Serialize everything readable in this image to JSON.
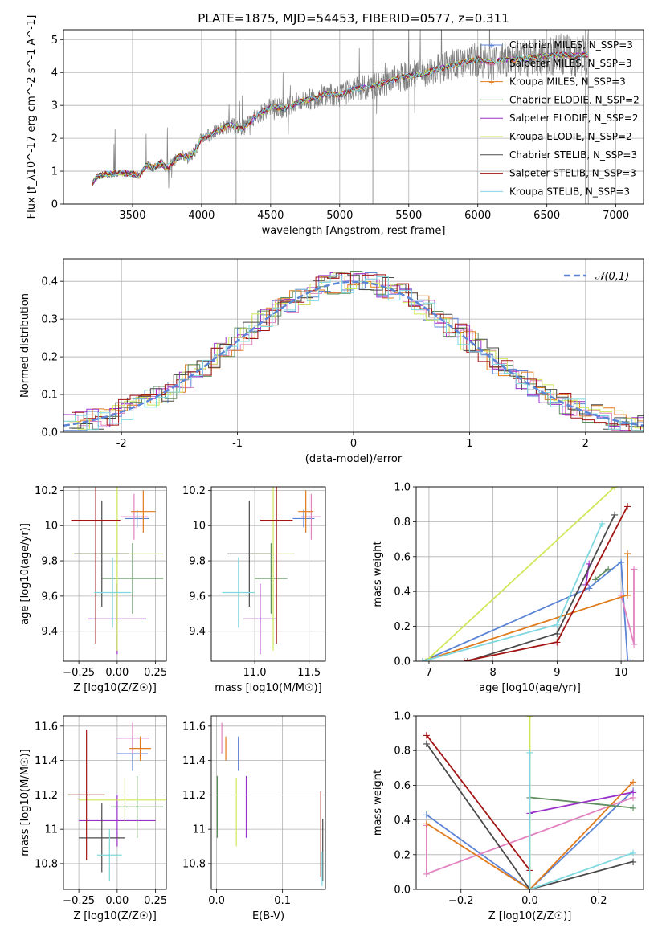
{
  "colors": {
    "Chabrier MILES": "#5b84d6",
    "Salpeter MILES": "#e283c0",
    "Kroupa MILES": "#e07b1e",
    "Chabrier ELODIE": "#5f8f5f",
    "Salpeter ELODIE": "#9b30c8",
    "Kroupa ELODIE": "#cfe85a",
    "Chabrier STELIB": "#4a4a4a",
    "Salpeter STELIB": "#a31515",
    "Kroupa STELIB": "#7fd8e0",
    "data": "#808080",
    "normal": "#5b84d6"
  },
  "chart_data": [
    {
      "id": "spectrum",
      "type": "line",
      "title": "PLATE=1875, MJD=54453, FIBERID=0577, z=0.311",
      "xlabel": "wavelength [Angstrom, rest frame]",
      "ylabel": "Flux [f_λ10^-17 erg cm^-2 s^-1 A^-1]",
      "xlim": [
        3000,
        7200
      ],
      "ylim": [
        0,
        5.3
      ],
      "xticks": [
        3500,
        4000,
        4500,
        5000,
        5500,
        6000,
        6500,
        7000
      ],
      "yticks": [
        0,
        1,
        2,
        3,
        4,
        5
      ],
      "legend_position": "top-right",
      "legend": [
        "Chabrier MILES, N_SSP=3",
        "Salpeter MILES, N_SSP=3",
        "Kroupa MILES, N_SSP=3",
        "Chabrier ELODIE, N_SSP=2",
        "Salpeter ELODIE, N_SSP=2",
        "Kroupa ELODIE, N_SSP=2",
        "Chabrier STELIB, N_SSP=3",
        "Salpeter STELIB, N_SSP=3",
        "Kroupa STELIB, N_SSP=3"
      ],
      "model_continuum": {
        "x": [
          3200,
          3250,
          3300,
          3400,
          3500,
          3550,
          3600,
          3650,
          3700,
          3750,
          3800,
          3850,
          3900,
          3950,
          4000,
          4100,
          4200,
          4300,
          4400,
          4500,
          4600,
          4700,
          4800,
          4900,
          5000,
          5100,
          5200,
          5300,
          5400,
          5500,
          5600,
          5700,
          5800,
          5900,
          6000,
          6100,
          6200,
          6300,
          6400,
          6500,
          6600,
          6700,
          6800,
          6900,
          7000,
          7100,
          7200
        ],
        "y": [
          0.6,
          0.85,
          0.9,
          0.95,
          0.92,
          0.85,
          1.2,
          1.1,
          1.25,
          1.1,
          1.3,
          1.5,
          1.4,
          1.6,
          2.0,
          2.2,
          2.4,
          2.3,
          2.7,
          2.95,
          2.9,
          3.1,
          3.2,
          3.35,
          3.3,
          3.5,
          3.55,
          3.65,
          3.8,
          3.9,
          3.95,
          4.1,
          4.2,
          4.3,
          4.4,
          4.3,
          4.4,
          4.4,
          4.45,
          4.5,
          4.55,
          4.5,
          4.55,
          4.6,
          4.55,
          4.55,
          4.6
        ]
      },
      "data_extent": [
        3210,
        6800
      ]
    },
    {
      "id": "residuals",
      "type": "histogram",
      "xlabel": "(data-model)/error",
      "ylabel": "Normed distribution",
      "xlim": [
        -2.5,
        2.5
      ],
      "ylim": [
        0,
        0.46
      ],
      "xticks": [
        -2,
        -1,
        0,
        1,
        2
      ],
      "yticks": [
        0.0,
        0.1,
        0.2,
        0.3,
        0.4
      ],
      "legend": [
        "𝒩(0,1)"
      ],
      "legend_position": "top-right",
      "normal": {
        "mu": 0,
        "sigma": 1
      }
    },
    {
      "id": "age_vs_Z",
      "type": "errorbar",
      "xlabel": "Z [log10(Z/Z☉)]",
      "ylabel": "age  [log10(age/yr)]",
      "xlim": [
        -0.35,
        0.32
      ],
      "ylim": [
        9.23,
        10.22
      ],
      "xticks": [
        -0.25,
        0.0,
        0.25
      ],
      "xtick_labels": [
        "−0.25",
        "0.00",
        "0.25"
      ],
      "yticks": [
        9.4,
        9.6,
        9.8,
        10.0,
        10.2
      ],
      "points": [
        {
          "model": "Chabrier MILES",
          "x": 0.13,
          "xerr": 0.08,
          "y": 10.04,
          "yerr": 0.05
        },
        {
          "model": "Salpeter MILES",
          "x": 0.11,
          "xerr": 0.09,
          "y": 10.05,
          "yerr": 0.13
        },
        {
          "model": "Kroupa MILES",
          "x": 0.17,
          "xerr": 0.08,
          "y": 10.08,
          "yerr": 0.12
        },
        {
          "model": "Chabrier ELODIE",
          "x": 0.1,
          "xerr": 0.2,
          "y": 9.7,
          "yerr": 0.2
        },
        {
          "model": "Salpeter ELODIE",
          "x": 0.0,
          "xerr": 0.19,
          "y": 9.47,
          "yerr": 0.2
        },
        {
          "model": "Kroupa ELODIE",
          "x": 0.0,
          "xerr": 0.3,
          "y": 9.84,
          "yerr": 0.55
        },
        {
          "model": "Chabrier STELIB",
          "x": -0.1,
          "xerr": 0.18,
          "y": 9.84,
          "yerr": 0.3
        },
        {
          "model": "Salpeter STELIB",
          "x": -0.14,
          "xerr": 0.16,
          "y": 10.03,
          "yerr": 0.7
        },
        {
          "model": "Kroupa STELIB",
          "x": -0.03,
          "xerr": 0.12,
          "y": 9.62,
          "yerr": 0.2
        }
      ]
    },
    {
      "id": "age_vs_mass",
      "type": "errorbar",
      "xlabel": "mass [log10(M/M☉)]",
      "ylabel": "",
      "xlim": [
        10.6,
        11.65
      ],
      "ylim": [
        9.23,
        10.22
      ],
      "xticks": [
        11.0,
        11.5
      ],
      "xtick_labels": [
        "11.0",
        "11.5"
      ],
      "yticks": [
        9.4,
        9.6,
        9.8,
        10.0,
        10.2
      ],
      "points": [
        {
          "model": "Chabrier MILES",
          "x": 11.45,
          "xerr": 0.1,
          "y": 10.04,
          "yerr": 0.05
        },
        {
          "model": "Salpeter MILES",
          "x": 11.52,
          "xerr": 0.09,
          "y": 10.05,
          "yerr": 0.13
        },
        {
          "model": "Kroupa MILES",
          "x": 11.47,
          "xerr": 0.07,
          "y": 10.08,
          "yerr": 0.12
        },
        {
          "model": "Chabrier ELODIE",
          "x": 11.15,
          "xerr": 0.15,
          "y": 9.7,
          "yerr": 0.2
        },
        {
          "model": "Salpeter ELODIE",
          "x": 11.05,
          "xerr": 0.15,
          "y": 9.47,
          "yerr": 0.2
        },
        {
          "model": "Kroupa ELODIE",
          "x": 11.17,
          "xerr": 0.2,
          "y": 9.84,
          "yerr": 0.55
        },
        {
          "model": "Chabrier STELIB",
          "x": 10.95,
          "xerr": 0.2,
          "y": 9.84,
          "yerr": 0.3
        },
        {
          "model": "Salpeter STELIB",
          "x": 11.2,
          "xerr": 0.15,
          "y": 10.03,
          "yerr": 0.7
        },
        {
          "model": "Kroupa STELIB",
          "x": 10.85,
          "xerr": 0.15,
          "y": 9.62,
          "yerr": 0.2
        }
      ]
    },
    {
      "id": "weight_vs_age",
      "type": "line",
      "xlabel": "age  [log10(age/yr)]",
      "ylabel": "mass weight",
      "xlim": [
        6.8,
        10.35
      ],
      "ylim": [
        0,
        1.0
      ],
      "xticks": [
        7,
        8,
        9,
        10
      ],
      "yticks": [
        0.0,
        0.2,
        0.4,
        0.6,
        0.8,
        1.0
      ],
      "series": [
        {
          "model": "Chabrier MILES",
          "x": [
            6.9,
            9.5,
            10.0,
            10.1
          ],
          "y": [
            0.0,
            0.42,
            0.57,
            0.01
          ]
        },
        {
          "model": "Salpeter MILES",
          "x": [
            10.0,
            10.2,
            10.2
          ],
          "y": [
            0.38,
            0.1,
            0.53
          ]
        },
        {
          "model": "Kroupa MILES",
          "x": [
            6.9,
            10.1,
            10.1
          ],
          "y": [
            0.0,
            0.38,
            0.62
          ]
        },
        {
          "model": "Chabrier ELODIE",
          "x": [
            9.6,
            9.8
          ],
          "y": [
            0.47,
            0.53
          ]
        },
        {
          "model": "Salpeter ELODIE",
          "x": [
            9.45,
            9.5
          ],
          "y": [
            0.44,
            0.56
          ]
        },
        {
          "model": "Kroupa ELODIE",
          "x": [
            6.95,
            9.9
          ],
          "y": [
            0.0,
            1.0
          ]
        },
        {
          "model": "Chabrier STELIB",
          "x": [
            7.6,
            9.0,
            9.9
          ],
          "y": [
            0.0,
            0.16,
            0.84
          ]
        },
        {
          "model": "Salpeter STELIB",
          "x": [
            7.55,
            9.0,
            10.1
          ],
          "y": [
            0.0,
            0.11,
            0.89
          ]
        },
        {
          "model": "Kroupa STELIB",
          "x": [
            6.9,
            9.0,
            9.7
          ],
          "y": [
            0.0,
            0.21,
            0.79
          ]
        }
      ]
    },
    {
      "id": "mass_vs_Z",
      "type": "errorbar",
      "xlabel": "Z [log10(Z/Z☉)]",
      "ylabel": "mass [log10(M/M☉)]",
      "xlim": [
        -0.35,
        0.32
      ],
      "ylim": [
        10.65,
        11.66
      ],
      "xticks": [
        -0.25,
        0.0,
        0.25
      ],
      "xtick_labels": [
        "−0.25",
        "0.00",
        "0.25"
      ],
      "yticks": [
        10.8,
        11.0,
        11.2,
        11.4,
        11.6
      ],
      "points": [
        {
          "model": "Chabrier MILES",
          "x": 0.1,
          "xerr": 0.1,
          "y": 11.44,
          "yerr": 0.1
        },
        {
          "model": "Salpeter MILES",
          "x": 0.1,
          "xerr": 0.11,
          "y": 11.53,
          "yerr": 0.09
        },
        {
          "model": "Kroupa MILES",
          "x": 0.15,
          "xerr": 0.07,
          "y": 11.47,
          "yerr": 0.07
        },
        {
          "model": "Chabrier ELODIE",
          "x": 0.13,
          "xerr": 0.17,
          "y": 11.13,
          "yerr": 0.18
        },
        {
          "model": "Salpeter ELODIE",
          "x": 0.0,
          "xerr": 0.25,
          "y": 11.05,
          "yerr": 0.15
        },
        {
          "model": "Kroupa ELODIE",
          "x": 0.05,
          "xerr": 0.3,
          "y": 11.17,
          "yerr": 0.13
        },
        {
          "model": "Chabrier STELIB",
          "x": -0.1,
          "xerr": 0.15,
          "y": 10.95,
          "yerr": 0.2
        },
        {
          "model": "Salpeter STELIB",
          "x": -0.2,
          "xerr": 0.12,
          "y": 11.2,
          "yerr": 0.38
        },
        {
          "model": "Kroupa STELIB",
          "x": -0.05,
          "xerr": 0.08,
          "y": 10.85,
          "yerr": 0.15
        }
      ]
    },
    {
      "id": "mass_vs_ebv",
      "type": "errorbar",
      "xlabel": "E(B-V)",
      "ylabel": "",
      "xlim": [
        -0.008,
        0.165
      ],
      "ylim": [
        10.65,
        11.66
      ],
      "xticks": [
        0.0,
        0.1
      ],
      "xtick_labels": [
        "0.0",
        "0.1"
      ],
      "yticks": [
        10.8,
        11.0,
        11.2,
        11.4,
        11.6
      ],
      "points": [
        {
          "model": "Chabrier MILES",
          "x": 0.033,
          "y": 11.44,
          "yerr": 0.1
        },
        {
          "model": "Salpeter MILES",
          "x": 0.008,
          "y": 11.53,
          "yerr": 0.09
        },
        {
          "model": "Kroupa MILES",
          "x": 0.014,
          "y": 11.47,
          "yerr": 0.07
        },
        {
          "model": "Chabrier ELODIE",
          "x": 0.001,
          "y": 11.13,
          "yerr": 0.18
        },
        {
          "model": "Salpeter ELODIE",
          "x": 0.045,
          "y": 11.13,
          "yerr": 0.18
        },
        {
          "model": "Kroupa ELODIE",
          "x": 0.03,
          "y": 11.1,
          "yerr": 0.2
        },
        {
          "model": "Chabrier STELIB",
          "x": 0.161,
          "y": 10.88,
          "yerr": 0.18
        },
        {
          "model": "Salpeter STELIB",
          "x": 0.158,
          "y": 10.97,
          "yerr": 0.25
        },
        {
          "model": "Kroupa STELIB",
          "x": 0.16,
          "y": 10.77,
          "yerr": 0.1
        }
      ]
    },
    {
      "id": "weight_vs_Z",
      "type": "line",
      "xlabel": "Z [log10(Z/Z☉)]",
      "ylabel": "mass weight",
      "xlim": [
        -0.33,
        0.33
      ],
      "ylim": [
        0,
        1.0
      ],
      "xticks": [
        -0.2,
        0.0,
        0.2
      ],
      "xtick_labels": [
        "−0.2",
        "0.0",
        "0.2"
      ],
      "yticks": [
        0.0,
        0.2,
        0.4,
        0.6,
        0.8,
        1.0
      ],
      "series": [
        {
          "model": "Chabrier MILES",
          "x": [
            -0.3,
            0.0,
            0.3
          ],
          "y": [
            0.43,
            0.0,
            0.57
          ]
        },
        {
          "model": "Salpeter MILES",
          "x": [
            -0.3,
            -0.3,
            0.3
          ],
          "y": [
            0.37,
            0.09,
            0.53
          ]
        },
        {
          "model": "Kroupa MILES",
          "x": [
            -0.3,
            0.0,
            0.3
          ],
          "y": [
            0.38,
            0.0,
            0.62
          ]
        },
        {
          "model": "Chabrier ELODIE",
          "x": [
            0.0,
            0.3
          ],
          "y": [
            0.53,
            0.47
          ]
        },
        {
          "model": "Salpeter ELODIE",
          "x": [
            0.0,
            0.3
          ],
          "y": [
            0.44,
            0.56
          ]
        },
        {
          "model": "Kroupa ELODIE",
          "x": [
            0.0,
            0.0
          ],
          "y": [
            1.0,
            0.0
          ]
        },
        {
          "model": "Chabrier STELIB",
          "x": [
            -0.3,
            0.0,
            0.3
          ],
          "y": [
            0.84,
            0.0,
            0.16
          ]
        },
        {
          "model": "Salpeter STELIB",
          "x": [
            -0.3,
            0.0
          ],
          "y": [
            0.89,
            0.11
          ]
        },
        {
          "model": "Kroupa STELIB",
          "x": [
            0.0,
            0.0,
            0.3
          ],
          "y": [
            0.79,
            0.0,
            0.21
          ]
        }
      ]
    }
  ]
}
